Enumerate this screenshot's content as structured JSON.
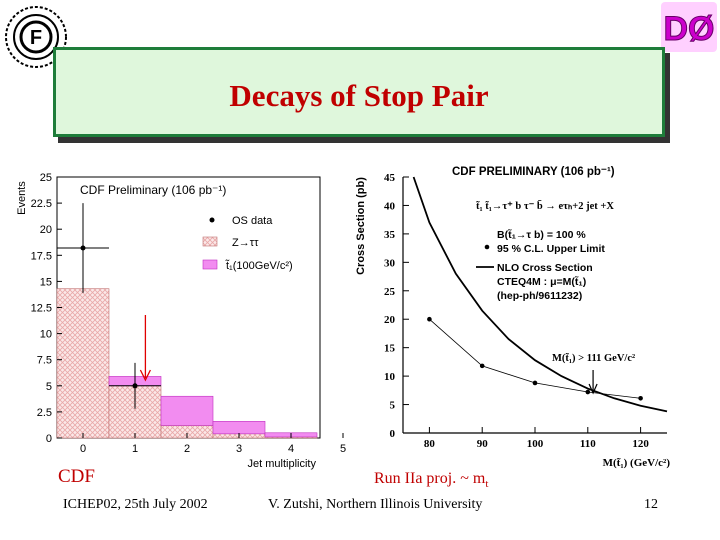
{
  "slide": {
    "title": "Decays of Stop Pair",
    "cdf_caption": "CDF",
    "run_caption": "Run IIa proj. ~ m",
    "run_caption_sub": "t",
    "footer_left": "ICHEP02, 25th July 2002",
    "footer_center": "V. Zutshi, Northern Illinois University",
    "page_number": "12",
    "logo_left_text": "F",
    "logo_right_text": "DØ"
  },
  "colors": {
    "title": "#c00000",
    "title_bg": "#dff7dc",
    "title_border": "#1e7d3a",
    "stop_fill": "#f28cf0",
    "ztautau_hatch": "#e8a8a8",
    "arrow_red": "#e00000"
  },
  "chart_data": [
    {
      "type": "bar",
      "title": "CDF Preliminary (106 pb⁻¹)",
      "ylabel": "Events",
      "xlabel": "Jet multiplicity",
      "ylim": [
        0,
        25
      ],
      "x_ticks": [
        "0",
        "1",
        "2",
        "3",
        "4",
        "5"
      ],
      "y_ticks": [
        "0",
        "2.5",
        "5",
        "7.5",
        "10",
        "12.5",
        "15",
        "17.5",
        "20",
        "22.5",
        "25"
      ],
      "categories": [
        "0",
        "1",
        "2",
        "3",
        "4"
      ],
      "series": [
        {
          "name": "Z→ττ",
          "values": [
            14.3,
            5.0,
            1.2,
            0.4,
            0.1
          ]
        },
        {
          "name": "t̃₁(100GeV/c²)",
          "values": [
            0.0,
            0.9,
            2.8,
            1.2,
            0.4
          ]
        }
      ],
      "os_data": {
        "x": [
          0,
          1
        ],
        "y": [
          18.2,
          5.0
        ],
        "err_lo": [
          13.9,
          2.8
        ],
        "err_hi": [
          22.5,
          7.2
        ]
      },
      "legend": [
        "OS data",
        "Z→ττ",
        "t̃₁(100GeV/c²)"
      ],
      "annotation_arrow_x": 1.2
    },
    {
      "type": "line",
      "title": "CDF PRELIMINARY (106 pb⁻¹)",
      "ylabel": "Cross Section (pb)",
      "xlabel": "M(t̃₁) (GeV/c²)",
      "xlim": [
        75,
        125
      ],
      "ylim": [
        0,
        45
      ],
      "x_ticks": [
        "80",
        "90",
        "100",
        "110",
        "120"
      ],
      "y_ticks": [
        "0",
        "5",
        "10",
        "15",
        "20",
        "25",
        "30",
        "35",
        "40",
        "45"
      ],
      "process": "t̃₁ t̃₁→τ⁺ b τ⁻ b̄ → eτₕ+2 jet +X",
      "annotation_lines": [
        "B(t̃₁→τ b) = 100 %",
        "95 % C.L. Upper Limit",
        "NLO Cross Section",
        "CTEQ4M : μ=M(t̃₁)",
        "(hep-ph/9611232)"
      ],
      "limit_label": "M(t̃₁) > 111 GeV/c²",
      "series": [
        {
          "name": "95 % C.L. Upper Limit",
          "x": [
            80,
            90,
            100,
            110,
            120
          ],
          "y": [
            20,
            11.8,
            8.8,
            7.2,
            6.1
          ]
        },
        {
          "name": "NLO Cross Section",
          "x": [
            77,
            80,
            85,
            90,
            95,
            100,
            105,
            110,
            115,
            120,
            125
          ],
          "y": [
            45,
            37,
            28,
            21.5,
            16.5,
            12.8,
            10,
            7.8,
            6.1,
            4.8,
            3.8
          ]
        }
      ],
      "limit_arrow_x": 111
    }
  ]
}
